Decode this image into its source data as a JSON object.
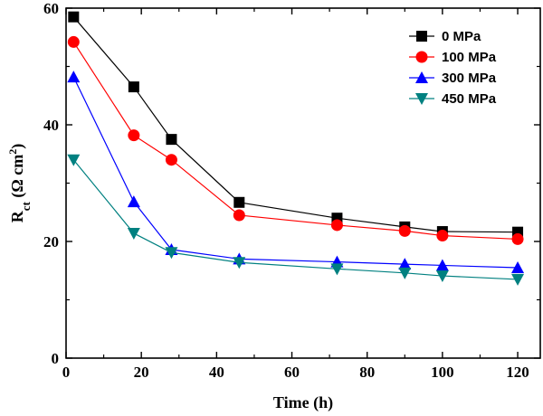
{
  "chart_data": {
    "type": "line",
    "xlabel": "Time (h)",
    "ylabel": {
      "base": "R",
      "sub": "ct",
      "unit_prefix": " (Ω cm",
      "sup": "2",
      "unit_suffix": ")"
    },
    "xlim": [
      0,
      126
    ],
    "ylim": [
      0,
      60
    ],
    "xticks": [
      0,
      20,
      40,
      60,
      80,
      100,
      120
    ],
    "yticks": [
      0,
      20,
      40,
      60
    ],
    "grid": false,
    "legend_position": "top-right",
    "x": [
      2,
      18,
      28,
      46,
      72,
      90,
      100,
      120
    ],
    "series": [
      {
        "name": "0 MPa",
        "color": "#000000",
        "marker": "square",
        "values": [
          58.5,
          46.5,
          37.5,
          26.7,
          24.0,
          22.5,
          21.7,
          21.6
        ]
      },
      {
        "name": "100 MPa",
        "color": "#ff0000",
        "marker": "circle",
        "values": [
          54.2,
          38.2,
          34.0,
          24.5,
          22.8,
          21.8,
          21.0,
          20.4
        ]
      },
      {
        "name": "300 MPa",
        "color": "#0000ff",
        "marker": "triangle-up",
        "values": [
          48.2,
          26.8,
          18.6,
          17.0,
          16.5,
          16.1,
          15.9,
          15.5
        ]
      },
      {
        "name": "450 MPa",
        "color": "#008080",
        "marker": "triangle-down",
        "values": [
          34.0,
          21.4,
          18.1,
          16.4,
          15.3,
          14.6,
          14.1,
          13.5
        ]
      }
    ]
  }
}
